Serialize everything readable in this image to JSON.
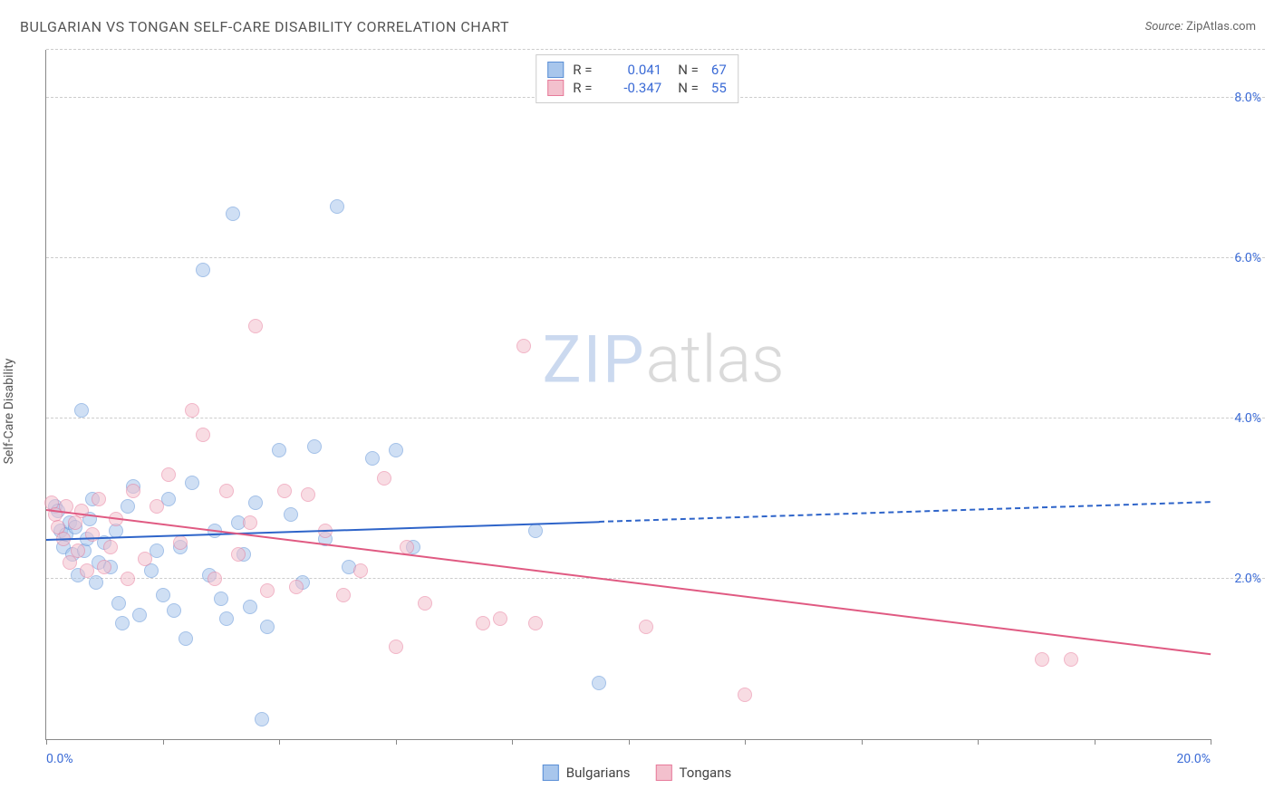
{
  "title": "BULGARIAN VS TONGAN SELF-CARE DISABILITY CORRELATION CHART",
  "source_prefix": "Source: ",
  "source_name": "ZipAtlas.com",
  "y_axis_label": "Self-Care Disability",
  "watermark": {
    "part1": "ZIP",
    "part2": "atlas"
  },
  "chart": {
    "type": "scatter",
    "xlim": [
      0,
      20
    ],
    "ylim": [
      0,
      8.6
    ],
    "x_ticks": [
      0,
      2,
      4,
      6,
      8,
      10,
      12,
      14,
      16,
      18,
      20
    ],
    "x_tick_labels": {
      "0": "0.0%",
      "20": "20.0%"
    },
    "y_gridlines": [
      2,
      4,
      6,
      8,
      8.6
    ],
    "y_tick_labels": {
      "2": "2.0%",
      "4": "4.0%",
      "6": "6.0%",
      "8": "8.0%"
    },
    "background_color": "#ffffff",
    "grid_color": "#cccccc",
    "axis_color": "#888888",
    "tick_label_color": "#3b6bd6",
    "marker_radius": 8,
    "marker_opacity": 0.55,
    "series": [
      {
        "name": "Bulgarians",
        "color_fill": "#a8c6ec",
        "color_stroke": "#5a8fd6",
        "r": "0.041",
        "n": "67",
        "trend": {
          "y_at_x0": 2.48,
          "y_at_xmax": 2.95,
          "solid_until_x": 9.5,
          "color": "#2e64c9",
          "width": 2
        },
        "points": [
          [
            0.15,
            2.9
          ],
          [
            0.2,
            2.85
          ],
          [
            0.25,
            2.6
          ],
          [
            0.3,
            2.4
          ],
          [
            0.35,
            2.55
          ],
          [
            0.4,
            2.7
          ],
          [
            0.45,
            2.3
          ],
          [
            0.5,
            2.65
          ],
          [
            0.55,
            2.05
          ],
          [
            0.6,
            4.1
          ],
          [
            0.65,
            2.35
          ],
          [
            0.7,
            2.5
          ],
          [
            0.75,
            2.75
          ],
          [
            0.8,
            3.0
          ],
          [
            0.85,
            1.95
          ],
          [
            0.9,
            2.2
          ],
          [
            1.0,
            2.45
          ],
          [
            1.1,
            2.15
          ],
          [
            1.2,
            2.6
          ],
          [
            1.25,
            1.7
          ],
          [
            1.3,
            1.45
          ],
          [
            1.4,
            2.9
          ],
          [
            1.5,
            3.15
          ],
          [
            1.6,
            1.55
          ],
          [
            1.8,
            2.1
          ],
          [
            1.9,
            2.35
          ],
          [
            2.0,
            1.8
          ],
          [
            2.1,
            3.0
          ],
          [
            2.2,
            1.6
          ],
          [
            2.3,
            2.4
          ],
          [
            2.4,
            1.25
          ],
          [
            2.5,
            3.2
          ],
          [
            2.7,
            5.85
          ],
          [
            2.8,
            2.05
          ],
          [
            2.9,
            2.6
          ],
          [
            3.0,
            1.75
          ],
          [
            3.1,
            1.5
          ],
          [
            3.2,
            6.55
          ],
          [
            3.3,
            2.7
          ],
          [
            3.4,
            2.3
          ],
          [
            3.5,
            1.65
          ],
          [
            3.6,
            2.95
          ],
          [
            3.7,
            0.25
          ],
          [
            3.8,
            1.4
          ],
          [
            4.0,
            3.6
          ],
          [
            4.2,
            2.8
          ],
          [
            4.4,
            1.95
          ],
          [
            4.6,
            3.65
          ],
          [
            4.8,
            2.5
          ],
          [
            5.0,
            6.65
          ],
          [
            5.2,
            2.15
          ],
          [
            5.6,
            3.5
          ],
          [
            6.0,
            3.6
          ],
          [
            6.3,
            2.4
          ],
          [
            8.4,
            2.6
          ],
          [
            9.5,
            0.7
          ]
        ]
      },
      {
        "name": "Tongans",
        "color_fill": "#f3c0cd",
        "color_stroke": "#e77a9a",
        "r": "-0.347",
        "n": "55",
        "trend": {
          "y_at_x0": 2.85,
          "y_at_xmax": 1.05,
          "solid_until_x": 20,
          "color": "#e05a82",
          "width": 2
        },
        "points": [
          [
            0.1,
            2.95
          ],
          [
            0.15,
            2.8
          ],
          [
            0.2,
            2.65
          ],
          [
            0.3,
            2.5
          ],
          [
            0.35,
            2.9
          ],
          [
            0.4,
            2.2
          ],
          [
            0.5,
            2.7
          ],
          [
            0.55,
            2.35
          ],
          [
            0.6,
            2.85
          ],
          [
            0.7,
            2.1
          ],
          [
            0.8,
            2.55
          ],
          [
            0.9,
            3.0
          ],
          [
            1.0,
            2.15
          ],
          [
            1.1,
            2.4
          ],
          [
            1.2,
            2.75
          ],
          [
            1.4,
            2.0
          ],
          [
            1.5,
            3.1
          ],
          [
            1.7,
            2.25
          ],
          [
            1.9,
            2.9
          ],
          [
            2.1,
            3.3
          ],
          [
            2.3,
            2.45
          ],
          [
            2.5,
            4.1
          ],
          [
            2.7,
            3.8
          ],
          [
            2.9,
            2.0
          ],
          [
            3.1,
            3.1
          ],
          [
            3.3,
            2.3
          ],
          [
            3.5,
            2.7
          ],
          [
            3.6,
            5.15
          ],
          [
            3.8,
            1.85
          ],
          [
            4.1,
            3.1
          ],
          [
            4.3,
            1.9
          ],
          [
            4.5,
            3.05
          ],
          [
            4.8,
            2.6
          ],
          [
            5.1,
            1.8
          ],
          [
            5.4,
            2.1
          ],
          [
            5.8,
            3.25
          ],
          [
            6.0,
            1.15
          ],
          [
            6.2,
            2.4
          ],
          [
            6.5,
            1.7
          ],
          [
            7.5,
            1.45
          ],
          [
            7.8,
            1.5
          ],
          [
            8.2,
            4.9
          ],
          [
            8.4,
            1.45
          ],
          [
            10.3,
            1.4
          ],
          [
            12.0,
            0.55
          ],
          [
            17.1,
            1.0
          ],
          [
            17.6,
            1.0
          ]
        ]
      }
    ]
  },
  "legend_bottom": [
    {
      "label": "Bulgarians",
      "fill": "#a8c6ec",
      "stroke": "#5a8fd6"
    },
    {
      "label": "Tongans",
      "fill": "#f3c0cd",
      "stroke": "#e77a9a"
    }
  ]
}
